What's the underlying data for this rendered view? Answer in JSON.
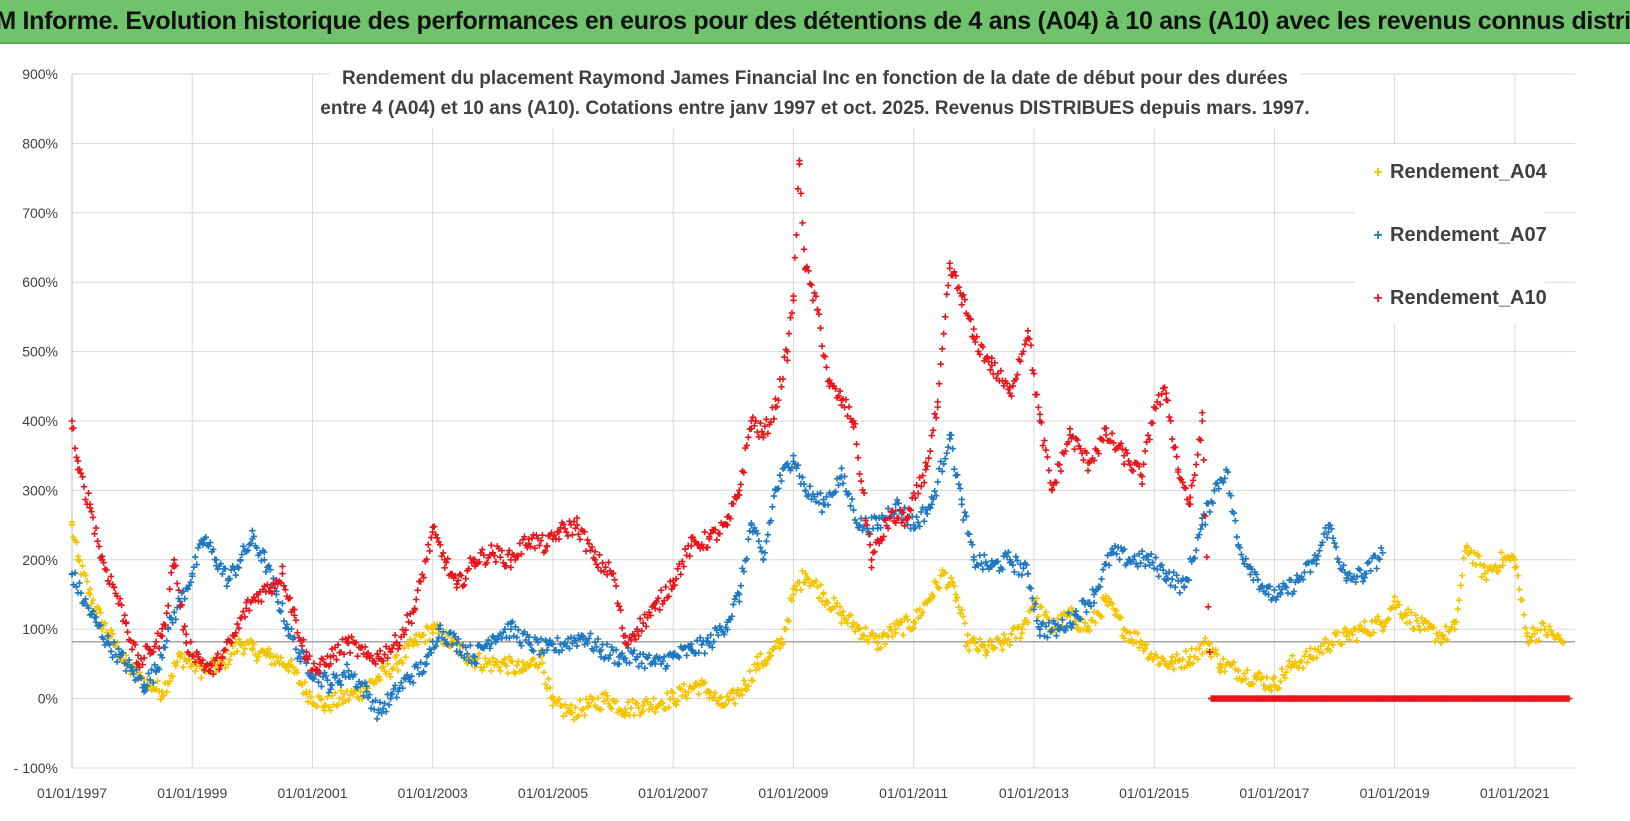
{
  "banner": {
    "title": "ADAM Informe. Evolution historique des performances en euros pour des détentions de 4 ans (A04) à 10 ans (A10) avec les revenus connus distribués"
  },
  "colors": {
    "banner_bg": "#6fc46b",
    "A04": "#f5c400",
    "A07": "#1f78c1",
    "A10": "#e8151b",
    "grid": "#d9d9d9",
    "reference_line": "#a6a6a6"
  },
  "chart_data": {
    "type": "scatter",
    "title_lines": [
      "Rendement du placement Raymond James Financial Inc en fonction de la date de début pour des durées",
      "entre 4 (A04) et 10 ans (A10). Cotations entre janv 1997 et oct. 2025. Revenus DISTRIBUES depuis mars. 1997."
    ],
    "xlabel": "",
    "ylabel": "",
    "x_range": [
      1997.0,
      2022.0
    ],
    "ylim": [
      -100,
      900
    ],
    "y_ticks": [
      -100,
      0,
      100,
      200,
      300,
      400,
      500,
      600,
      700,
      800,
      900
    ],
    "y_tick_labels": [
      "- 100%",
      "0%",
      "100%",
      "200%",
      "300%",
      "400%",
      "500%",
      "600%",
      "700%",
      "800%",
      "900%"
    ],
    "x_ticks": [
      1997,
      1999,
      2001,
      2003,
      2005,
      2007,
      2009,
      2011,
      2013,
      2015,
      2017,
      2019,
      2021
    ],
    "x_tick_labels": [
      "01/01/1997",
      "01/01/1999",
      "01/01/2001",
      "01/01/2003",
      "01/01/2005",
      "01/01/2007",
      "01/01/2009",
      "01/01/2011",
      "01/01/2013",
      "01/01/2015",
      "01/01/2017",
      "01/01/2019",
      "01/01/2021"
    ],
    "grid": true,
    "reference_value": 82,
    "legend_position": "top-right",
    "series": [
      {
        "name": "Rendement_A04",
        "marker": "+",
        "points": [
          [
            1997.0,
            250
          ],
          [
            1997.1,
            200
          ],
          [
            1997.3,
            150
          ],
          [
            1997.5,
            110
          ],
          [
            1997.7,
            80
          ],
          [
            1997.9,
            50
          ],
          [
            1998.1,
            30
          ],
          [
            1998.3,
            20
          ],
          [
            1998.5,
            10
          ],
          [
            1998.8,
            60
          ],
          [
            1999.0,
            50
          ],
          [
            1999.2,
            40
          ],
          [
            1999.5,
            50
          ],
          [
            1999.8,
            80
          ],
          [
            2000.0,
            70
          ],
          [
            2000.3,
            60
          ],
          [
            2000.6,
            50
          ],
          [
            2000.9,
            10
          ],
          [
            2001.2,
            -10
          ],
          [
            2001.5,
            0
          ],
          [
            2001.8,
            10
          ],
          [
            2002.1,
            30
          ],
          [
            2002.4,
            50
          ],
          [
            2002.7,
            80
          ],
          [
            2003.0,
            100
          ],
          [
            2003.3,
            80
          ],
          [
            2003.6,
            60
          ],
          [
            2003.9,
            50
          ],
          [
            2004.2,
            50
          ],
          [
            2004.5,
            40
          ],
          [
            2004.8,
            60
          ],
          [
            2005.0,
            -10
          ],
          [
            2005.3,
            -20
          ],
          [
            2005.6,
            -10
          ],
          [
            2005.9,
            0
          ],
          [
            2006.2,
            -15
          ],
          [
            2006.5,
            -10
          ],
          [
            2006.8,
            -5
          ],
          [
            2007.0,
            0
          ],
          [
            2007.2,
            10
          ],
          [
            2007.4,
            20
          ],
          [
            2007.6,
            10
          ],
          [
            2007.8,
            -10
          ],
          [
            2008.0,
            0
          ],
          [
            2008.2,
            20
          ],
          [
            2008.4,
            50
          ],
          [
            2008.6,
            60
          ],
          [
            2008.8,
            80
          ],
          [
            2009.0,
            150
          ],
          [
            2009.2,
            180
          ],
          [
            2009.5,
            150
          ],
          [
            2009.8,
            120
          ],
          [
            2010.1,
            100
          ],
          [
            2010.4,
            80
          ],
          [
            2010.7,
            100
          ],
          [
            2011.0,
            110
          ],
          [
            2011.3,
            150
          ],
          [
            2011.5,
            180
          ],
          [
            2011.7,
            150
          ],
          [
            2011.9,
            80
          ],
          [
            2012.2,
            70
          ],
          [
            2012.5,
            80
          ],
          [
            2012.8,
            100
          ],
          [
            2013.0,
            140
          ],
          [
            2013.3,
            100
          ],
          [
            2013.6,
            120
          ],
          [
            2013.9,
            100
          ],
          [
            2014.2,
            140
          ],
          [
            2014.5,
            100
          ],
          [
            2014.8,
            80
          ],
          [
            2015.0,
            60
          ],
          [
            2015.3,
            50
          ],
          [
            2015.6,
            60
          ],
          [
            2015.9,
            80
          ],
          [
            2016.1,
            50
          ],
          [
            2016.4,
            40
          ],
          [
            2016.7,
            30
          ],
          [
            2017.0,
            20
          ],
          [
            2017.3,
            50
          ],
          [
            2017.6,
            60
          ],
          [
            2017.9,
            80
          ],
          [
            2018.2,
            90
          ],
          [
            2018.5,
            100
          ],
          [
            2018.8,
            110
          ],
          [
            2019.0,
            140
          ],
          [
            2019.2,
            120
          ],
          [
            2019.5,
            100
          ],
          [
            2019.8,
            90
          ],
          [
            2020.0,
            100
          ],
          [
            2020.2,
            220
          ],
          [
            2020.5,
            180
          ],
          [
            2020.8,
            200
          ],
          [
            2021.0,
            200
          ],
          [
            2021.2,
            90
          ],
          [
            2021.5,
            100
          ],
          [
            2021.8,
            80
          ]
        ]
      },
      {
        "name": "Rendement_A07",
        "marker": "+",
        "points": [
          [
            1997.0,
            180
          ],
          [
            1997.2,
            140
          ],
          [
            1997.4,
            110
          ],
          [
            1997.6,
            80
          ],
          [
            1997.8,
            60
          ],
          [
            1998.0,
            40
          ],
          [
            1998.2,
            20
          ],
          [
            1998.4,
            40
          ],
          [
            1998.6,
            100
          ],
          [
            1998.8,
            140
          ],
          [
            1999.0,
            180
          ],
          [
            1999.2,
            230
          ],
          [
            1999.4,
            200
          ],
          [
            1999.6,
            170
          ],
          [
            1999.8,
            200
          ],
          [
            2000.0,
            230
          ],
          [
            2000.2,
            200
          ],
          [
            2000.4,
            150
          ],
          [
            2000.6,
            100
          ],
          [
            2000.8,
            60
          ],
          [
            2001.0,
            40
          ],
          [
            2001.3,
            20
          ],
          [
            2001.6,
            40
          ],
          [
            2001.9,
            10
          ],
          [
            2002.1,
            -20
          ],
          [
            2002.3,
            0
          ],
          [
            2002.6,
            30
          ],
          [
            2002.9,
            50
          ],
          [
            2003.1,
            100
          ],
          [
            2003.4,
            80
          ],
          [
            2003.7,
            60
          ],
          [
            2004.0,
            90
          ],
          [
            2004.3,
            100
          ],
          [
            2004.6,
            80
          ],
          [
            2004.9,
            70
          ],
          [
            2005.2,
            80
          ],
          [
            2005.5,
            90
          ],
          [
            2005.8,
            70
          ],
          [
            2006.1,
            60
          ],
          [
            2006.4,
            60
          ],
          [
            2006.7,
            50
          ],
          [
            2007.0,
            60
          ],
          [
            2007.3,
            70
          ],
          [
            2007.6,
            80
          ],
          [
            2007.9,
            110
          ],
          [
            2008.1,
            150
          ],
          [
            2008.3,
            250
          ],
          [
            2008.5,
            200
          ],
          [
            2008.7,
            300
          ],
          [
            2009.0,
            350
          ],
          [
            2009.2,
            300
          ],
          [
            2009.5,
            280
          ],
          [
            2009.8,
            320
          ],
          [
            2010.1,
            250
          ],
          [
            2010.4,
            250
          ],
          [
            2010.7,
            280
          ],
          [
            2011.0,
            250
          ],
          [
            2011.3,
            280
          ],
          [
            2011.6,
            380
          ],
          [
            2011.8,
            280
          ],
          [
            2012.0,
            200
          ],
          [
            2012.3,
            190
          ],
          [
            2012.6,
            200
          ],
          [
            2012.9,
            180
          ],
          [
            2013.1,
            100
          ],
          [
            2013.4,
            100
          ],
          [
            2013.7,
            120
          ],
          [
            2014.0,
            150
          ],
          [
            2014.3,
            210
          ],
          [
            2014.6,
            200
          ],
          [
            2014.9,
            200
          ],
          [
            2015.2,
            180
          ],
          [
            2015.5,
            160
          ],
          [
            2015.8,
            250
          ],
          [
            2016.0,
            300
          ],
          [
            2016.2,
            330
          ],
          [
            2016.4,
            220
          ],
          [
            2016.6,
            190
          ],
          [
            2016.9,
            150
          ],
          [
            2017.1,
            150
          ],
          [
            2017.4,
            170
          ],
          [
            2017.7,
            200
          ],
          [
            2017.9,
            250
          ],
          [
            2018.2,
            170
          ],
          [
            2018.5,
            180
          ],
          [
            2018.8,
            210
          ]
        ]
      },
      {
        "name": "Rendement_A10",
        "marker": "+",
        "points": [
          [
            1997.0,
            400
          ],
          [
            1997.1,
            330
          ],
          [
            1997.3,
            280
          ],
          [
            1997.5,
            200
          ],
          [
            1997.7,
            160
          ],
          [
            1997.9,
            110
          ],
          [
            1998.1,
            50
          ],
          [
            1998.3,
            70
          ],
          [
            1998.5,
            90
          ],
          [
            1998.7,
            200
          ],
          [
            1998.9,
            80
          ],
          [
            1999.1,
            60
          ],
          [
            1999.3,
            40
          ],
          [
            1999.5,
            60
          ],
          [
            1999.7,
            90
          ],
          [
            1999.9,
            130
          ],
          [
            2000.1,
            150
          ],
          [
            2000.3,
            160
          ],
          [
            2000.5,
            180
          ],
          [
            2000.7,
            120
          ],
          [
            2000.9,
            60
          ],
          [
            2001.1,
            40
          ],
          [
            2001.3,
            60
          ],
          [
            2001.6,
            80
          ],
          [
            2001.9,
            60
          ],
          [
            2002.1,
            60
          ],
          [
            2002.4,
            80
          ],
          [
            2002.7,
            130
          ],
          [
            2003.0,
            240
          ],
          [
            2003.2,
            200
          ],
          [
            2003.4,
            160
          ],
          [
            2003.7,
            200
          ],
          [
            2004.0,
            210
          ],
          [
            2004.3,
            200
          ],
          [
            2004.6,
            230
          ],
          [
            2004.9,
            220
          ],
          [
            2005.1,
            240
          ],
          [
            2005.4,
            250
          ],
          [
            2005.7,
            200
          ],
          [
            2006.0,
            180
          ],
          [
            2006.2,
            80
          ],
          [
            2006.4,
            100
          ],
          [
            2006.7,
            130
          ],
          [
            2007.0,
            170
          ],
          [
            2007.3,
            220
          ],
          [
            2007.6,
            230
          ],
          [
            2007.9,
            250
          ],
          [
            2008.1,
            300
          ],
          [
            2008.3,
            400
          ],
          [
            2008.5,
            380
          ],
          [
            2008.7,
            420
          ],
          [
            2008.9,
            500
          ],
          [
            2009.0,
            580
          ],
          [
            2009.1,
            770
          ],
          [
            2009.2,
            620
          ],
          [
            2009.4,
            560
          ],
          [
            2009.6,
            450
          ],
          [
            2009.8,
            430
          ],
          [
            2010.0,
            400
          ],
          [
            2010.3,
            200
          ],
          [
            2010.6,
            260
          ],
          [
            2010.9,
            260
          ],
          [
            2011.2,
            330
          ],
          [
            2011.4,
            420
          ],
          [
            2011.6,
            620
          ],
          [
            2011.8,
            580
          ],
          [
            2012.0,
            520
          ],
          [
            2012.3,
            480
          ],
          [
            2012.6,
            440
          ],
          [
            2012.9,
            530
          ],
          [
            2013.1,
            400
          ],
          [
            2013.3,
            300
          ],
          [
            2013.6,
            380
          ],
          [
            2013.9,
            340
          ],
          [
            2014.2,
            380
          ],
          [
            2014.5,
            350
          ],
          [
            2014.8,
            320
          ],
          [
            2015.0,
            420
          ],
          [
            2015.2,
            440
          ],
          [
            2015.4,
            330
          ],
          [
            2015.6,
            280
          ],
          [
            2015.8,
            400
          ],
          [
            2015.95,
            0
          ],
          [
            2016.3,
            0
          ],
          [
            2016.8,
            0
          ],
          [
            2017.3,
            0
          ],
          [
            2017.8,
            0
          ],
          [
            2018.3,
            0
          ],
          [
            2018.8,
            0
          ],
          [
            2019.3,
            0
          ],
          [
            2019.8,
            0
          ],
          [
            2020.3,
            0
          ],
          [
            2020.8,
            0
          ],
          [
            2021.3,
            0
          ],
          [
            2021.9,
            0
          ]
        ]
      }
    ]
  }
}
